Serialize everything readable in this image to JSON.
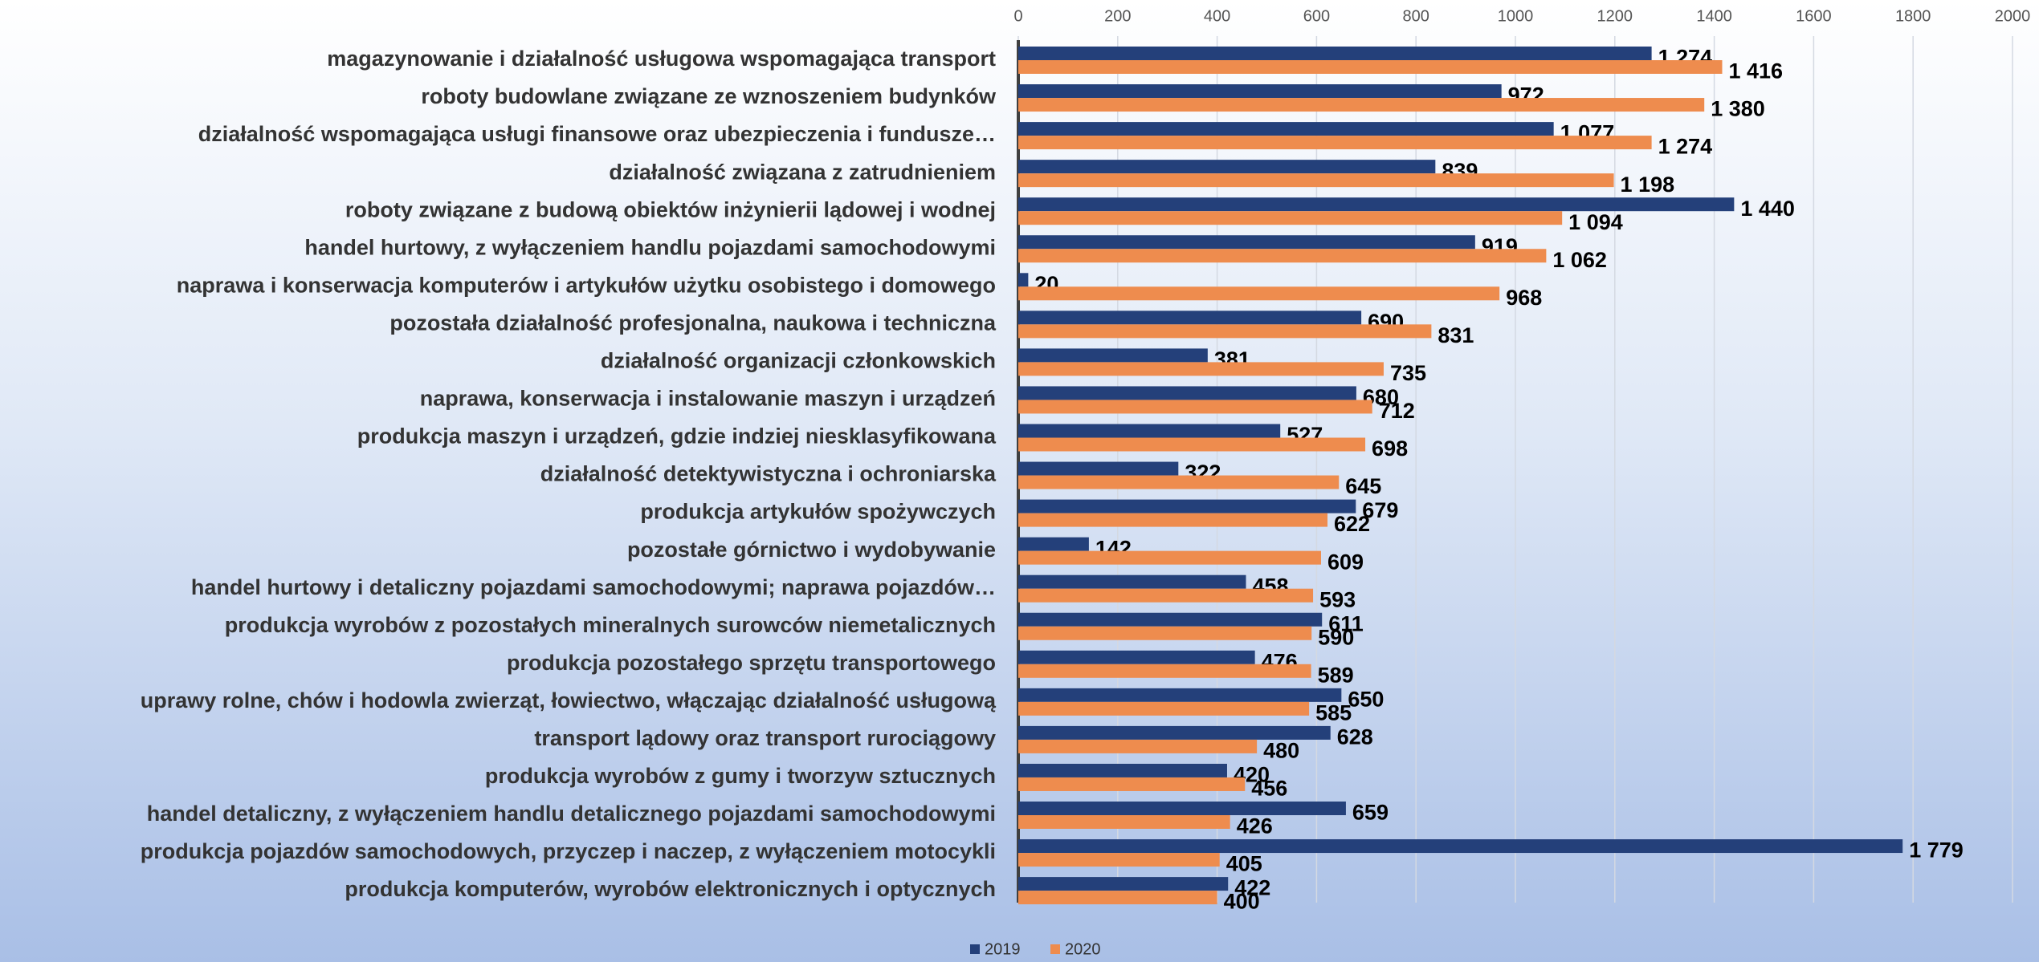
{
  "chart_data": {
    "type": "barh",
    "categories": [
      "magazynowanie i działalność usługowa wspomagająca transport",
      "roboty budowlane związane ze wznoszeniem budynków",
      "działalność wspomagająca usługi finansowe oraz ubezpieczenia i fundusze…",
      "działalność związana z zatrudnieniem",
      "roboty związane z budową obiektów inżynierii lądowej i wodnej",
      "handel hurtowy, z wyłączeniem handlu pojazdami samochodowymi",
      "naprawa i konserwacja komputerów i artykułów użytku osobistego i domowego",
      "pozostała działalność profesjonalna, naukowa i techniczna",
      "działalność organizacji członkowskich",
      "naprawa, konserwacja i instalowanie maszyn i urządzeń",
      "produkcja maszyn i urządzeń, gdzie indziej niesklasyfikowana",
      "działalność detektywistyczna i ochroniarska",
      "produkcja artykułów spożywczych",
      "pozostałe górnictwo i wydobywanie",
      "handel hurtowy i detaliczny pojazdami samochodowymi; naprawa pojazdów…",
      "produkcja wyrobów z pozostałych mineralnych surowców niemetalicznych",
      "produkcja pozostałego sprzętu transportowego",
      "uprawy rolne, chów i hodowla zwierząt, łowiectwo, włączając działalność usługową",
      "transport lądowy oraz transport rurociągowy",
      "produkcja wyrobów z gumy i tworzyw sztucznych",
      "handel detaliczny, z wyłączeniem handlu detalicznego pojazdami samochodowymi",
      "produkcja pojazdów samochodowych, przyczep i naczep, z wyłączeniem motocykli",
      "produkcja komputerów, wyrobów elektronicznych i optycznych"
    ],
    "series": [
      {
        "name": "2019",
        "color": "#24407a",
        "values": [
          1274,
          972,
          1077,
          839,
          1440,
          919,
          20,
          690,
          381,
          680,
          527,
          322,
          679,
          142,
          458,
          611,
          476,
          650,
          628,
          420,
          659,
          1779,
          422
        ],
        "value_labels": [
          "1 274",
          "972",
          "1 077",
          "839",
          "1 440",
          "919",
          "20",
          "690",
          "381",
          "680",
          "527",
          "322",
          "679",
          "142",
          "458",
          "611",
          "476",
          "650",
          "628",
          "420",
          "659",
          "1 779",
          "422"
        ]
      },
      {
        "name": "2020",
        "color": "#ee8c4e",
        "values": [
          1416,
          1380,
          1274,
          1198,
          1094,
          1062,
          968,
          831,
          735,
          712,
          698,
          645,
          622,
          609,
          593,
          590,
          589,
          585,
          480,
          456,
          426,
          405,
          400
        ],
        "value_labels": [
          "1 416",
          "1 380",
          "1 274",
          "1 198",
          "1 094",
          "1 062",
          "968",
          "831",
          "735",
          "712",
          "698",
          "645",
          "622",
          "609",
          "593",
          "590",
          "589",
          "585",
          "480",
          "456",
          "426",
          "405",
          "400"
        ]
      }
    ],
    "xlim": [
      0,
      2000
    ],
    "xticks": [
      0,
      200,
      400,
      600,
      800,
      1000,
      1200,
      1400,
      1600,
      1800,
      2000
    ],
    "grid": true,
    "legend": "bottom"
  }
}
